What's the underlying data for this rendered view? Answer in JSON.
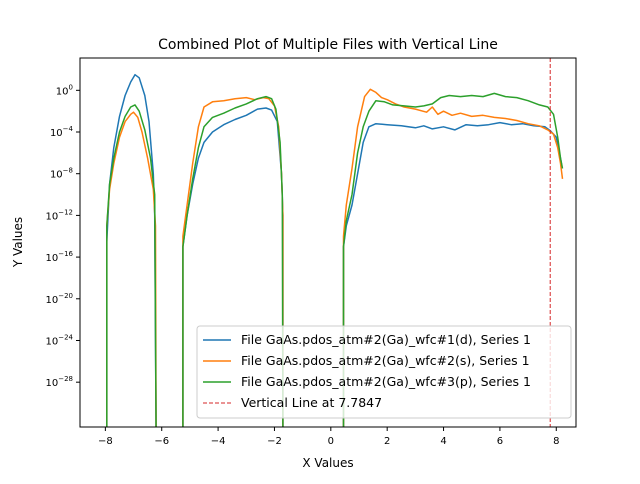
{
  "chart_data": {
    "type": "line",
    "title": "Combined Plot of Multiple Files with Vertical Line",
    "xlabel": "X Values",
    "ylabel": "Y Values",
    "xlim": [
      -8.9,
      8.7
    ],
    "ylim_log10": [
      -32.3,
      3.1
    ],
    "yscale": "log",
    "grid": false,
    "legend_position": "lower-right",
    "x_ticks": [
      {
        "v": -8,
        "label": "−8"
      },
      {
        "v": -6,
        "label": "−6"
      },
      {
        "v": -4,
        "label": "−4"
      },
      {
        "v": -2,
        "label": "−2"
      },
      {
        "v": 0,
        "label": "0"
      },
      {
        "v": 2,
        "label": "2"
      },
      {
        "v": 4,
        "label": "4"
      },
      {
        "v": 6,
        "label": "6"
      },
      {
        "v": 8,
        "label": "8"
      }
    ],
    "y_ticks": [
      {
        "exp": 0,
        "label": "10",
        "sup": "0"
      },
      {
        "exp": -4,
        "label": "10",
        "sup": "−4"
      },
      {
        "exp": -8,
        "label": "10",
        "sup": "−8"
      },
      {
        "exp": -12,
        "label": "10",
        "sup": "−12"
      },
      {
        "exp": -16,
        "label": "10",
        "sup": "−16"
      },
      {
        "exp": -20,
        "label": "10",
        "sup": "−20"
      },
      {
        "exp": -24,
        "label": "10",
        "sup": "−24"
      },
      {
        "exp": -28,
        "label": "10",
        "sup": "−28"
      }
    ],
    "series": [
      {
        "name": "File GaAs.pdos_atm#2(Ga)_wfc#1(d), Series 1",
        "color": "#1f77b4",
        "segments": [
          [
            [
              -7.95,
              -33
            ],
            [
              -7.95,
              -14.5
            ],
            [
              -7.85,
              -9
            ],
            [
              -7.7,
              -5.5
            ],
            [
              -7.5,
              -2.5
            ],
            [
              -7.3,
              -0.5
            ],
            [
              -7.1,
              0.8
            ],
            [
              -6.95,
              1.5
            ],
            [
              -6.8,
              1.2
            ],
            [
              -6.6,
              -0.5
            ],
            [
              -6.45,
              -3
            ],
            [
              -6.3,
              -8
            ],
            [
              -6.25,
              -12
            ],
            [
              -6.2,
              -33
            ]
          ],
          [
            [
              -5.25,
              -33
            ],
            [
              -5.25,
              -15
            ],
            [
              -5.1,
              -12
            ],
            [
              -4.9,
              -9
            ],
            [
              -4.7,
              -6.5
            ],
            [
              -4.5,
              -5
            ],
            [
              -4.2,
              -4
            ],
            [
              -3.8,
              -3.3
            ],
            [
              -3.4,
              -2.8
            ],
            [
              -3.0,
              -2.4
            ],
            [
              -2.6,
              -1.8
            ],
            [
              -2.3,
              -1.7
            ],
            [
              -2.1,
              -1.9
            ],
            [
              -1.9,
              -3
            ],
            [
              -1.75,
              -8
            ],
            [
              -1.7,
              -12
            ],
            [
              -1.7,
              -33
            ]
          ],
          [
            [
              0.45,
              -33
            ],
            [
              0.45,
              -15
            ],
            [
              0.55,
              -13
            ],
            [
              0.75,
              -11
            ],
            [
              0.95,
              -8
            ],
            [
              1.15,
              -5
            ],
            [
              1.35,
              -3.5
            ],
            [
              1.6,
              -3.2
            ],
            [
              2.0,
              -3.3
            ],
            [
              2.5,
              -3.4
            ],
            [
              3.0,
              -3.6
            ],
            [
              3.3,
              -3.4
            ],
            [
              3.6,
              -3.7
            ],
            [
              4.0,
              -3.5
            ],
            [
              4.4,
              -3.8
            ],
            [
              4.8,
              -3.3
            ],
            [
              5.2,
              -3.4
            ],
            [
              5.6,
              -3.3
            ],
            [
              6.0,
              -3.1
            ],
            [
              6.4,
              -3.3
            ],
            [
              6.8,
              -3.2
            ],
            [
              7.2,
              -3.4
            ],
            [
              7.6,
              -3.5
            ],
            [
              7.8,
              -3.9
            ],
            [
              8.0,
              -4.5
            ],
            [
              8.15,
              -6.5
            ],
            [
              8.2,
              -7.3
            ]
          ]
        ]
      },
      {
        "name": "File GaAs.pdos_atm#2(Ga)_wfc#2(s), Series 1",
        "color": "#ff7f0e",
        "segments": [
          [
            [
              -7.95,
              -33
            ],
            [
              -7.95,
              -13
            ],
            [
              -7.85,
              -9.5
            ],
            [
              -7.7,
              -7
            ],
            [
              -7.5,
              -4.5
            ],
            [
              -7.3,
              -3
            ],
            [
              -7.1,
              -2.3
            ],
            [
              -7.0,
              -2.1
            ],
            [
              -6.85,
              -2.6
            ],
            [
              -6.7,
              -4
            ],
            [
              -6.5,
              -6.5
            ],
            [
              -6.3,
              -9.5
            ],
            [
              -6.22,
              -13
            ],
            [
              -6.2,
              -33
            ]
          ],
          [
            [
              -5.25,
              -33
            ],
            [
              -5.25,
              -14
            ],
            [
              -5.1,
              -11
            ],
            [
              -4.9,
              -7
            ],
            [
              -4.7,
              -3.5
            ],
            [
              -4.5,
              -1.6
            ],
            [
              -4.2,
              -1.1
            ],
            [
              -3.8,
              -1.0
            ],
            [
              -3.4,
              -0.8
            ],
            [
              -3.0,
              -0.7
            ],
            [
              -2.7,
              -0.9
            ],
            [
              -2.4,
              -0.7
            ],
            [
              -2.2,
              -0.8
            ],
            [
              -2.0,
              -1.5
            ],
            [
              -1.85,
              -3.5
            ],
            [
              -1.75,
              -8
            ],
            [
              -1.7,
              -12
            ],
            [
              -1.7,
              -33
            ]
          ],
          [
            [
              0.45,
              -33
            ],
            [
              0.45,
              -14
            ],
            [
              0.55,
              -11
            ],
            [
              0.75,
              -7.5
            ],
            [
              0.95,
              -3.5
            ],
            [
              1.2,
              -0.6
            ],
            [
              1.4,
              0.1
            ],
            [
              1.6,
              -0.2
            ],
            [
              1.8,
              -0.7
            ],
            [
              2.0,
              -0.9
            ],
            [
              2.3,
              -1.3
            ],
            [
              2.6,
              -1.6
            ],
            [
              3.0,
              -1.8
            ],
            [
              3.4,
              -2.1
            ],
            [
              3.6,
              -1.6
            ],
            [
              3.8,
              -2.3
            ],
            [
              4.0,
              -2.0
            ],
            [
              4.3,
              -2.4
            ],
            [
              4.6,
              -2.2
            ],
            [
              5.0,
              -2.5
            ],
            [
              5.4,
              -2.4
            ],
            [
              5.8,
              -2.6
            ],
            [
              6.2,
              -2.7
            ],
            [
              6.6,
              -2.9
            ],
            [
              7.0,
              -3.2
            ],
            [
              7.4,
              -3.4
            ],
            [
              7.7,
              -3.8
            ],
            [
              7.9,
              -4.2
            ],
            [
              8.05,
              -5.5
            ],
            [
              8.15,
              -7
            ],
            [
              8.22,
              -8.5
            ]
          ]
        ]
      },
      {
        "name": "File GaAs.pdos_atm#2(Ga)_wfc#3(p), Series 1",
        "color": "#2ca02c",
        "segments": [
          [
            [
              -7.95,
              -33
            ],
            [
              -7.95,
              -13
            ],
            [
              -7.85,
              -9
            ],
            [
              -7.7,
              -6.5
            ],
            [
              -7.5,
              -4
            ],
            [
              -7.3,
              -2.5
            ],
            [
              -7.1,
              -1.6
            ],
            [
              -6.95,
              -1.4
            ],
            [
              -6.8,
              -2.0
            ],
            [
              -6.6,
              -3.8
            ],
            [
              -6.4,
              -6.5
            ],
            [
              -6.25,
              -10
            ],
            [
              -6.2,
              -33
            ]
          ],
          [
            [
              -5.25,
              -33
            ],
            [
              -5.25,
              -15
            ],
            [
              -5.1,
              -12
            ],
            [
              -4.9,
              -8.5
            ],
            [
              -4.7,
              -5.5
            ],
            [
              -4.5,
              -3.5
            ],
            [
              -4.2,
              -2.6
            ],
            [
              -3.8,
              -2.2
            ],
            [
              -3.4,
              -1.7
            ],
            [
              -3.0,
              -1.3
            ],
            [
              -2.6,
              -0.8
            ],
            [
              -2.3,
              -0.6
            ],
            [
              -2.1,
              -0.8
            ],
            [
              -1.95,
              -1.8
            ],
            [
              -1.8,
              -5
            ],
            [
              -1.72,
              -10
            ],
            [
              -1.7,
              -33
            ]
          ],
          [
            [
              0.45,
              -33
            ],
            [
              0.45,
              -15
            ],
            [
              0.55,
              -12.5
            ],
            [
              0.75,
              -10
            ],
            [
              0.95,
              -6
            ],
            [
              1.15,
              -3.5
            ],
            [
              1.35,
              -2.0
            ],
            [
              1.6,
              -1.0
            ],
            [
              1.9,
              -1.1
            ],
            [
              2.2,
              -1.4
            ],
            [
              2.6,
              -1.5
            ],
            [
              3.0,
              -1.6
            ],
            [
              3.3,
              -1.5
            ],
            [
              3.6,
              -1.3
            ],
            [
              3.9,
              -0.7
            ],
            [
              4.2,
              -0.5
            ],
            [
              4.6,
              -0.6
            ],
            [
              5.0,
              -0.5
            ],
            [
              5.4,
              -0.6
            ],
            [
              5.8,
              -0.3
            ],
            [
              6.2,
              -0.6
            ],
            [
              6.6,
              -0.7
            ],
            [
              7.0,
              -1.0
            ],
            [
              7.4,
              -1.4
            ],
            [
              7.7,
              -1.6
            ],
            [
              7.9,
              -2.3
            ],
            [
              8.05,
              -4.5
            ],
            [
              8.15,
              -6.5
            ],
            [
              8.22,
              -7.5
            ]
          ]
        ]
      }
    ],
    "vline": {
      "x": 7.7847,
      "color": "#d62728",
      "name": "Vertical Line at 7.7847"
    }
  }
}
